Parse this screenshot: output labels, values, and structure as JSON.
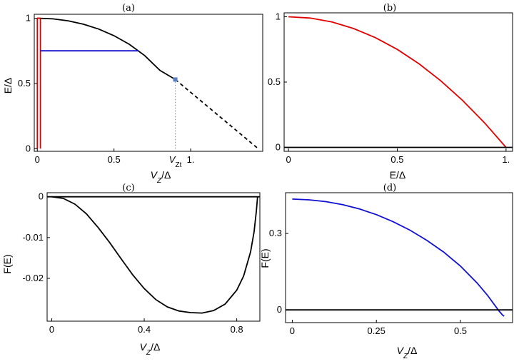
{
  "colors": {
    "black": "#000000",
    "red": "#e00000",
    "blue": "#1010d0",
    "marker": "#5a7fc0",
    "dotted": "#808080"
  },
  "chart_data": [
    {
      "id": "a",
      "panel_label": "(a)",
      "type": "line",
      "xlabel": "V_Z/Δ",
      "ylabel": "E/Δ",
      "xlim": [
        -0.02,
        1.47
      ],
      "ylim": [
        -0.02,
        1.03
      ],
      "xticks": [
        {
          "v": 0,
          "t": "0"
        },
        {
          "v": 0.5,
          "t": "0.5"
        },
        {
          "v": 1.0,
          "t": "1."
        }
      ],
      "yticks": [
        {
          "v": 0,
          "t": "0"
        },
        {
          "v": 0.5,
          "t": "0.5"
        },
        {
          "v": 1,
          "t": "1"
        }
      ],
      "extra_tick_label": {
        "x": 0.9,
        "text": "V",
        "subscript": "Zt"
      },
      "series": [
        {
          "style": "solid",
          "color": "black",
          "x": [
            0,
            0.1,
            0.2,
            0.3,
            0.4,
            0.5,
            0.6,
            0.7,
            0.8,
            0.9
          ],
          "y": [
            1.0,
            0.995,
            0.98,
            0.954,
            0.917,
            0.866,
            0.8,
            0.714,
            0.6,
            0.53
          ]
        },
        {
          "style": "dashed",
          "color": "black",
          "x": [
            0.9,
            1.44
          ],
          "y": [
            0.53,
            0.0
          ]
        },
        {
          "style": "solid",
          "color": "red",
          "x": [
            0.0,
            0.0,
            0.0
          ],
          "y": [
            0.0,
            1.0,
            1.0
          ]
        },
        {
          "style": "solid",
          "color": "red",
          "x": [
            0.0,
            0.02
          ],
          "y": [
            1.0,
            1.0
          ]
        },
        {
          "style": "solid",
          "color": "red",
          "x": [
            0.02,
            0.02
          ],
          "y": [
            1.0,
            0.0
          ]
        },
        {
          "style": "solid",
          "color": "blue",
          "x": [
            0.02,
            0.66
          ],
          "y": [
            0.75,
            0.75
          ]
        },
        {
          "style": "dotted",
          "color": "dotted",
          "x": [
            0.9,
            0.9
          ],
          "y": [
            0.0,
            0.53
          ]
        }
      ],
      "markers": [
        {
          "x": 0.9,
          "y": 0.53,
          "color": "marker"
        }
      ]
    },
    {
      "id": "b",
      "panel_label": "(b)",
      "type": "line",
      "xlabel": "E/Δ",
      "ylabel": "",
      "xlim": [
        -0.02,
        1.03
      ],
      "ylim": [
        -0.03,
        1.03
      ],
      "xticks": [
        {
          "v": 0,
          "t": "0"
        },
        {
          "v": 0.5,
          "t": "0.5"
        },
        {
          "v": 1.0,
          "t": "1."
        }
      ],
      "yticks": [
        {
          "v": 0,
          "t": "0"
        },
        {
          "v": 0.5,
          "t": "0.5"
        },
        {
          "v": 1,
          "t": "1"
        }
      ],
      "series": [
        {
          "style": "solid",
          "color": "red",
          "x": [
            0,
            0.1,
            0.2,
            0.3,
            0.4,
            0.5,
            0.6,
            0.7,
            0.8,
            0.9,
            1.0
          ],
          "y": [
            1.0,
            0.99,
            0.96,
            0.91,
            0.84,
            0.75,
            0.64,
            0.51,
            0.36,
            0.19,
            0.0
          ]
        },
        {
          "style": "solid",
          "color": "black",
          "x": [
            -0.02,
            1.03
          ],
          "y": [
            0,
            0
          ]
        }
      ],
      "markers": []
    },
    {
      "id": "c",
      "panel_label": "(c)",
      "type": "line",
      "xlabel": "V_Z/Δ",
      "ylabel": "F(E)",
      "xlim": [
        -0.02,
        0.9
      ],
      "ylim": [
        -0.0305,
        0.001
      ],
      "xticks": [
        {
          "v": 0,
          "t": "0"
        },
        {
          "v": 0.4,
          "t": "0.4"
        },
        {
          "v": 0.8,
          "t": "0.8"
        }
      ],
      "yticks": [
        {
          "v": 0,
          "t": "0"
        },
        {
          "v": -0.01,
          "t": "-0.01"
        },
        {
          "v": -0.02,
          "t": "-0.02"
        }
      ],
      "series": [
        {
          "style": "solid",
          "color": "black",
          "x": [
            0,
            0.05,
            0.1,
            0.15,
            0.2,
            0.25,
            0.3,
            0.35,
            0.4,
            0.45,
            0.5,
            0.55,
            0.6,
            0.65,
            0.7,
            0.75,
            0.8,
            0.83,
            0.86,
            0.875,
            0.885,
            0.89
          ],
          "y": [
            0,
            -0.0004,
            -0.0018,
            -0.0042,
            -0.0075,
            -0.0112,
            -0.0152,
            -0.0191,
            -0.0225,
            -0.0252,
            -0.027,
            -0.028,
            -0.0284,
            -0.0285,
            -0.0279,
            -0.0263,
            -0.0229,
            -0.0194,
            -0.0135,
            -0.0086,
            -0.0035,
            0
          ]
        },
        {
          "style": "solid",
          "color": "black",
          "x": [
            -0.02,
            0.9
          ],
          "y": [
            0,
            0
          ]
        }
      ],
      "markers": []
    },
    {
      "id": "d",
      "panel_label": "(d)",
      "type": "line",
      "xlabel": "V_Z/Δ",
      "ylabel": "F(E)",
      "xlim": [
        -0.02,
        0.655
      ],
      "ylim": [
        -0.05,
        0.46
      ],
      "xticks": [
        {
          "v": 0,
          "t": "0"
        },
        {
          "v": 0.25,
          "t": "0.25"
        },
        {
          "v": 0.5,
          "t": "0.5"
        }
      ],
      "yticks": [
        {
          "v": 0,
          "t": "0"
        },
        {
          "v": 0.3,
          "t": "0.3"
        }
      ],
      "series": [
        {
          "style": "solid",
          "color": "blue",
          "x": [
            0,
            0.05,
            0.1,
            0.15,
            0.2,
            0.25,
            0.3,
            0.35,
            0.4,
            0.45,
            0.5,
            0.55,
            0.58,
            0.6,
            0.615,
            0.625,
            0.63
          ],
          "y": [
            0.435,
            0.432,
            0.425,
            0.413,
            0.396,
            0.374,
            0.346,
            0.313,
            0.273,
            0.227,
            0.172,
            0.105,
            0.058,
            0.022,
            -0.005,
            -0.02,
            -0.025
          ]
        },
        {
          "style": "solid",
          "color": "black",
          "x": [
            -0.02,
            0.655
          ],
          "y": [
            0,
            0
          ]
        }
      ],
      "markers": []
    }
  ]
}
